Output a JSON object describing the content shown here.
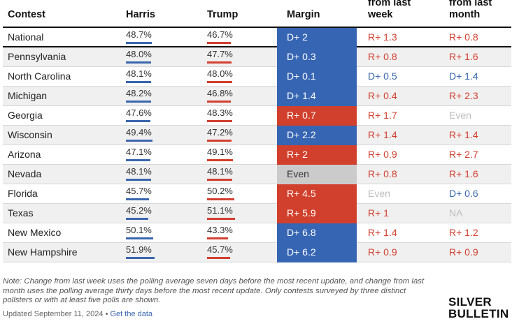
{
  "headers": {
    "contest": "Contest",
    "harris": "Harris",
    "trump": "Trump",
    "margin": "Margin",
    "week": "from last week",
    "month": "from last month"
  },
  "rows": [
    {
      "contest": "National",
      "harris": "48.7%",
      "trump": "46.7%",
      "harris_value": 48.7,
      "trump_value": 46.7,
      "margin": "D+ 2",
      "margin_party": "D",
      "week": "R+ 1.3",
      "week_party": "R",
      "month": "R+ 0.8",
      "month_party": "R"
    },
    {
      "contest": "Pennsylvania",
      "harris": "48.0%",
      "trump": "47.7%",
      "harris_value": 48.0,
      "trump_value": 47.7,
      "margin": "D+ 0.3",
      "margin_party": "D",
      "week": "R+ 0.8",
      "week_party": "R",
      "month": "R+ 1.6",
      "month_party": "R"
    },
    {
      "contest": "North Carolina",
      "harris": "48.1%",
      "trump": "48.0%",
      "harris_value": 48.1,
      "trump_value": 48.0,
      "margin": "D+ 0.1",
      "margin_party": "D",
      "week": "D+ 0.5",
      "week_party": "D",
      "month": "D+ 1.4",
      "month_party": "D"
    },
    {
      "contest": "Michigan",
      "harris": "48.2%",
      "trump": "46.8%",
      "harris_value": 48.2,
      "trump_value": 46.8,
      "margin": "D+ 1.4",
      "margin_party": "D",
      "week": "R+ 0.4",
      "week_party": "R",
      "month": "R+ 2.3",
      "month_party": "R"
    },
    {
      "contest": "Georgia",
      "harris": "47.6%",
      "trump": "48.3%",
      "harris_value": 47.6,
      "trump_value": 48.3,
      "margin": "R+ 0.7",
      "margin_party": "R",
      "week": "R+ 1.7",
      "week_party": "R",
      "month": "Even",
      "month_party": "E"
    },
    {
      "contest": "Wisconsin",
      "harris": "49.4%",
      "trump": "47.2%",
      "harris_value": 49.4,
      "trump_value": 47.2,
      "margin": "D+ 2.2",
      "margin_party": "D",
      "week": "R+ 1.4",
      "week_party": "R",
      "month": "R+ 1.4",
      "month_party": "R"
    },
    {
      "contest": "Arizona",
      "harris": "47.1%",
      "trump": "49.1%",
      "harris_value": 47.1,
      "trump_value": 49.1,
      "margin": "R+ 2",
      "margin_party": "R",
      "week": "R+ 0.9",
      "week_party": "R",
      "month": "R+ 2.7",
      "month_party": "R"
    },
    {
      "contest": "Nevada",
      "harris": "48.1%",
      "trump": "48.1%",
      "harris_value": 48.1,
      "trump_value": 48.1,
      "margin": "Even",
      "margin_party": "E",
      "week": "R+ 0.8",
      "week_party": "R",
      "month": "R+ 1.6",
      "month_party": "R"
    },
    {
      "contest": "Florida",
      "harris": "45.7%",
      "trump": "50.2%",
      "harris_value": 45.7,
      "trump_value": 50.2,
      "margin": "R+ 4.5",
      "margin_party": "R",
      "week": "Even",
      "week_party": "E",
      "month": "D+ 0.6",
      "month_party": "D"
    },
    {
      "contest": "Texas",
      "harris": "45.2%",
      "trump": "51.1%",
      "harris_value": 45.2,
      "trump_value": 51.1,
      "margin": "R+ 5.9",
      "margin_party": "R",
      "week": "R+ 1",
      "week_party": "R",
      "month": "NA",
      "month_party": "E"
    },
    {
      "contest": "New Mexico",
      "harris": "50.1%",
      "trump": "43.3%",
      "harris_value": 50.1,
      "trump_value": 43.3,
      "margin": "D+ 6.8",
      "margin_party": "D",
      "week": "R+ 1.4",
      "week_party": "R",
      "month": "R+ 1.2",
      "month_party": "R"
    },
    {
      "contest": "New Hampshire",
      "harris": "51.9%",
      "trump": "45.7%",
      "harris_value": 51.9,
      "trump_value": 45.7,
      "margin": "D+ 6.2",
      "margin_party": "D",
      "week": "R+ 0.9",
      "week_party": "R",
      "month": "R+ 0.9",
      "month_party": "R"
    }
  ],
  "note": "Note: Change from last week uses the polling average seven days before the most recent update, and change from last month uses the polling average thirty days before the most recent update. Only contests surveyed by three distinct pollsters or with at least five polls are shown.",
  "updated": "Updated September 11, 2024 •",
  "get_data": "Get the data",
  "logo_line1": "SILVER",
  "logo_line2": "BULLETIN",
  "colors": {
    "dem": "#3665b3",
    "rep": "#d1402c",
    "even": "#cbcbcb"
  }
}
